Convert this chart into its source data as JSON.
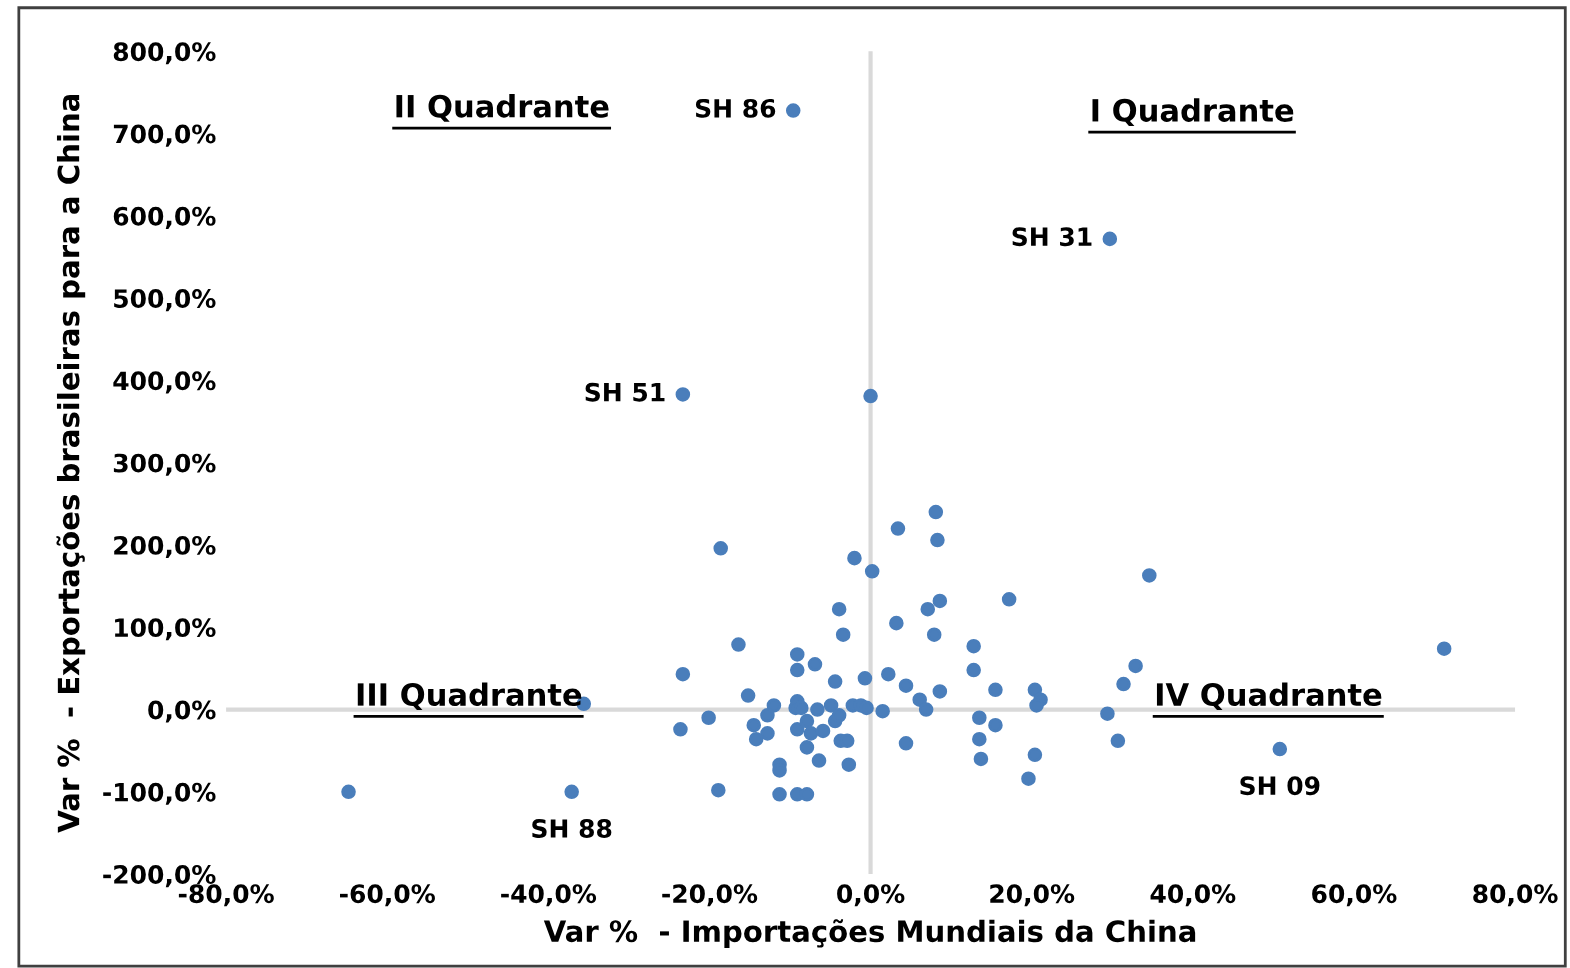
{
  "chart_data": {
    "type": "scatter",
    "xlabel": "Var %  - Importações Mundiais da China",
    "ylabel": "Var %  - Exportações brasileiras para a China",
    "series": [
      {
        "color": "#4a7ebb",
        "x": [
          -9.6,
          29.7,
          -23.3,
          0,
          8.1,
          3.4,
          8.3,
          -18.6,
          -2.0,
          0.2,
          -3.9,
          7.1,
          8.6,
          17.2,
          3.2,
          -3.4,
          7.9,
          -16.4,
          12.8,
          -9.1,
          -23.3,
          -9.1,
          -6.9,
          12.8,
          -4.4,
          -0.7,
          2.2,
          4.4,
          8.6,
          15.5,
          20.4,
          21.1,
          20.6,
          -35.6,
          -15.2,
          6.1,
          6.9,
          -9.1,
          -9.3,
          -8.6,
          -6.6,
          -4.9,
          -2.2,
          -1.2,
          -0.5,
          1.5,
          -12.0,
          -12.8,
          -20.1,
          -23.6,
          -14.5,
          -12.8,
          -14.2,
          -9.1,
          -7.9,
          -7.4,
          -5.9,
          -4.4,
          -3.9,
          -7.9,
          -3.7,
          -2.9,
          -6.4,
          -2.7,
          -11.3,
          -11.3,
          4.4,
          13.5,
          15.5,
          13.5,
          13.7,
          20.4,
          19.6,
          -18.9,
          -11.3,
          -9.1,
          -7.9,
          -37.1,
          -64.8,
          34.6,
          71.2,
          32.9,
          31.4,
          29.4,
          30.7,
          50.8
        ],
        "values": [
          728,
          572,
          383,
          381,
          240,
          220,
          206,
          196,
          184,
          168,
          122,
          122,
          132,
          134,
          105,
          91,
          91,
          79,
          77,
          67,
          43,
          48,
          55,
          48,
          34,
          38,
          43,
          29,
          22,
          24,
          24,
          12,
          5,
          7,
          17,
          12,
          0,
          10,
          2,
          2,
          0,
          5,
          5,
          5,
          2,
          -2,
          5,
          -7,
          -10,
          -24,
          -19,
          -29,
          -36,
          -24,
          -14,
          -29,
          -26,
          -14,
          -7,
          -46,
          -38,
          -38,
          -62,
          -67,
          -67,
          -74,
          -41,
          -10,
          -19,
          -36,
          -60,
          -55,
          -84,
          -98,
          -103,
          -103,
          -103,
          -100,
          -100,
          163,
          74,
          53,
          31,
          -5,
          -38,
          -48
        ]
      }
    ],
    "xlim": [
      -80,
      80
    ],
    "xticks": [
      {
        "value": -80,
        "label": "-80,0%"
      },
      {
        "value": -60,
        "label": "-60,0%"
      },
      {
        "value": -40,
        "label": "-40,0%"
      },
      {
        "value": -20,
        "label": "-20,0%"
      },
      {
        "value": 0,
        "label": "0,0%"
      },
      {
        "value": 20,
        "label": "20,0%"
      },
      {
        "value": 40,
        "label": "40,0%"
      },
      {
        "value": 60,
        "label": "60,0%"
      },
      {
        "value": 80,
        "label": "80,0%"
      }
    ],
    "ylim": [
      -200,
      800
    ],
    "yticks": [
      {
        "value": -200,
        "label": "-200,0%"
      },
      {
        "value": -100,
        "label": "-100,0%"
      },
      {
        "value": 0,
        "label": "0,0%"
      },
      {
        "value": 100,
        "label": "100,0%"
      },
      {
        "value": 200,
        "label": "200,0%"
      },
      {
        "value": 300,
        "label": "300,0%"
      },
      {
        "value": 400,
        "label": "400,0%"
      },
      {
        "value": 500,
        "label": "500,0%"
      },
      {
        "value": 600,
        "label": "600,0%"
      },
      {
        "value": 700,
        "label": "700,0%"
      },
      {
        "value": 800,
        "label": "800,0%"
      }
    ],
    "marker": "circle",
    "legend": false,
    "annotations": [
      "II Quadrante",
      "I Quadrante",
      "III Quadrante",
      "IV Quadrante",
      {
        "text": "SH 86",
        "x": -9.6,
        "y": 728
      },
      {
        "text": "SH 31",
        "x": 29.7,
        "y": 572
      },
      {
        "text": "SH 51",
        "x": -23.3,
        "y": 383
      },
      {
        "text": "SH 88",
        "x": -37.1,
        "y": -100
      },
      {
        "text": "SH 09",
        "x": 50.8,
        "y": -48
      }
    ]
  }
}
